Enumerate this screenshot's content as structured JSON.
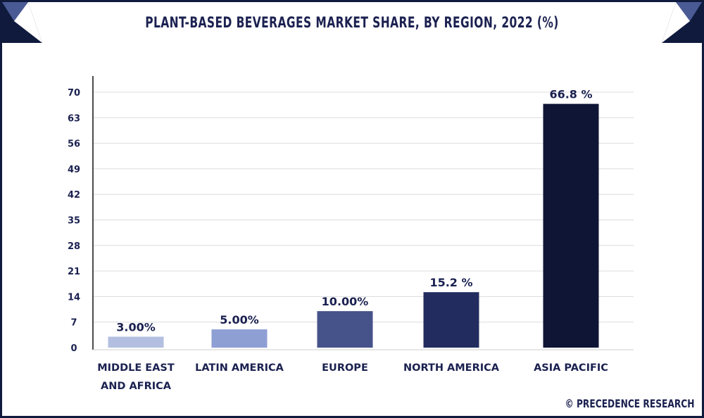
{
  "chart_data": {
    "type": "bar",
    "title": "PLANT-BASED BEVERAGES MARKET SHARE, BY REGION, 2022 (%)",
    "categories": [
      [
        "MIDDLE EAST",
        "AND AFRICA"
      ],
      [
        "LATIN AMERICA"
      ],
      [
        "EUROPE"
      ],
      [
        "NORTH AMERICA"
      ],
      [
        "ASIA PACIFIC"
      ]
    ],
    "values": [
      3.0,
      5.0,
      10.0,
      15.2,
      66.8
    ],
    "data_labels": [
      "3.00%",
      "5.00%",
      "10.00%",
      "15.2 %",
      "66.8 %"
    ],
    "colors": [
      "#b3bfe0",
      "#8e9fd4",
      "#46528a",
      "#232c5f",
      "#0e1535"
    ],
    "yticks": [
      0,
      7,
      14,
      21,
      28,
      35,
      42,
      49,
      56,
      63,
      70
    ],
    "ylim": [
      0,
      70
    ],
    "xlabel": "",
    "ylabel": "",
    "grid": true
  },
  "credit": "© PRECEDENCE RESEARCH"
}
